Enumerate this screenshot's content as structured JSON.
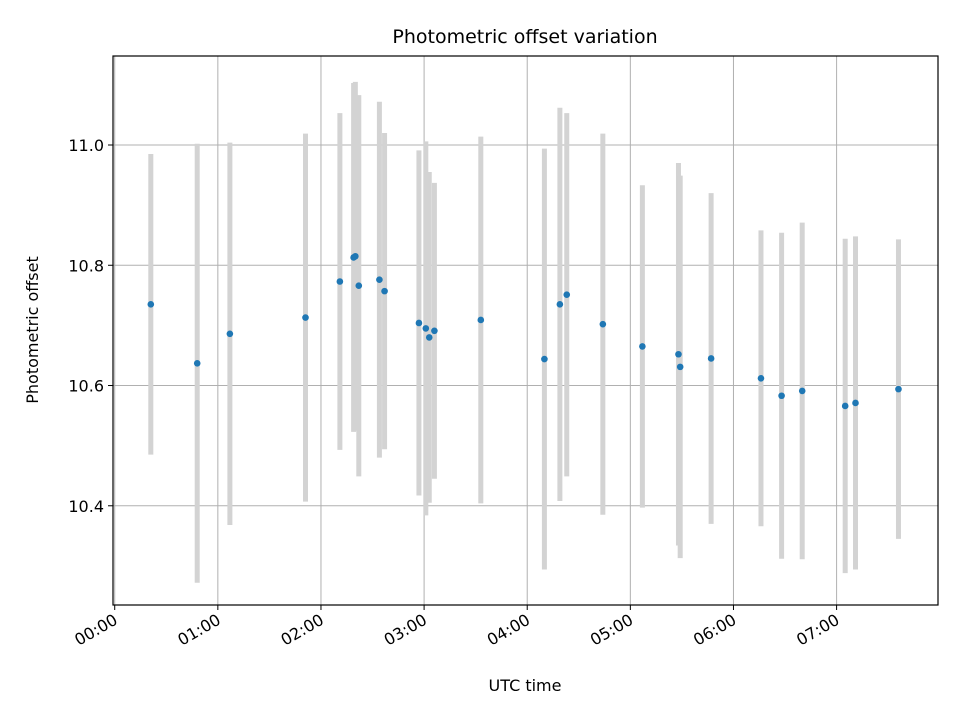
{
  "chart_data": {
    "type": "scatter",
    "title": "Photometric offset variation",
    "xlabel": "UTC time",
    "ylabel": "Photometric offset",
    "x_ticks": [
      "00:00",
      "01:00",
      "02:00",
      "03:00",
      "04:00",
      "05:00",
      "06:00",
      "07:00"
    ],
    "y_ticks": [
      "10.4",
      "10.6",
      "10.8",
      "11.0"
    ],
    "y_tick_values": [
      10.4,
      10.6,
      10.8,
      11.0
    ],
    "xlim": [
      "-00:01",
      "07:59"
    ],
    "ylim": [
      10.235,
      11.148
    ],
    "grid": true,
    "colors": {
      "marker": "#1f77b4",
      "error_bar": "#d3d3d3",
      "grid": "#b0b0b0"
    },
    "points": [
      {
        "x": "00:21",
        "y": 10.735,
        "err": 0.25
      },
      {
        "x": "00:48",
        "y": 10.637,
        "err": 0.365
      },
      {
        "x": "01:07",
        "y": 10.686,
        "err": 0.318
      },
      {
        "x": "01:51",
        "y": 10.713,
        "err": 0.306
      },
      {
        "x": "02:11",
        "y": 10.773,
        "err": 0.28
      },
      {
        "x": "02:19",
        "y": 10.813,
        "err": 0.29
      },
      {
        "x": "02:20",
        "y": 10.815,
        "err": 0.29
      },
      {
        "x": "02:22",
        "y": 10.766,
        "err": 0.317
      },
      {
        "x": "02:34",
        "y": 10.776,
        "err": 0.296
      },
      {
        "x": "02:37",
        "y": 10.757,
        "err": 0.263
      },
      {
        "x": "02:57",
        "y": 10.704,
        "err": 0.287
      },
      {
        "x": "03:01",
        "y": 10.695,
        "err": 0.311
      },
      {
        "x": "03:03",
        "y": 10.68,
        "err": 0.275
      },
      {
        "x": "03:06",
        "y": 10.691,
        "err": 0.246
      },
      {
        "x": "03:33",
        "y": 10.709,
        "err": 0.305
      },
      {
        "x": "04:10",
        "y": 10.644,
        "err": 0.35
      },
      {
        "x": "04:19",
        "y": 10.735,
        "err": 0.327
      },
      {
        "x": "04:23",
        "y": 10.751,
        "err": 0.302
      },
      {
        "x": "04:44",
        "y": 10.702,
        "err": 0.317
      },
      {
        "x": "05:07",
        "y": 10.665,
        "err": 0.268
      },
      {
        "x": "05:28",
        "y": 10.652,
        "err": 0.318
      },
      {
        "x": "05:29",
        "y": 10.631,
        "err": 0.318
      },
      {
        "x": "05:47",
        "y": 10.645,
        "err": 0.275
      },
      {
        "x": "06:16",
        "y": 10.612,
        "err": 0.246
      },
      {
        "x": "06:28",
        "y": 10.583,
        "err": 0.271
      },
      {
        "x": "06:40",
        "y": 10.591,
        "err": 0.28
      },
      {
        "x": "07:05",
        "y": 10.566,
        "err": 0.278
      },
      {
        "x": "07:11",
        "y": 10.571,
        "err": 0.277
      },
      {
        "x": "07:36",
        "y": 10.594,
        "err": 0.249
      }
    ]
  }
}
